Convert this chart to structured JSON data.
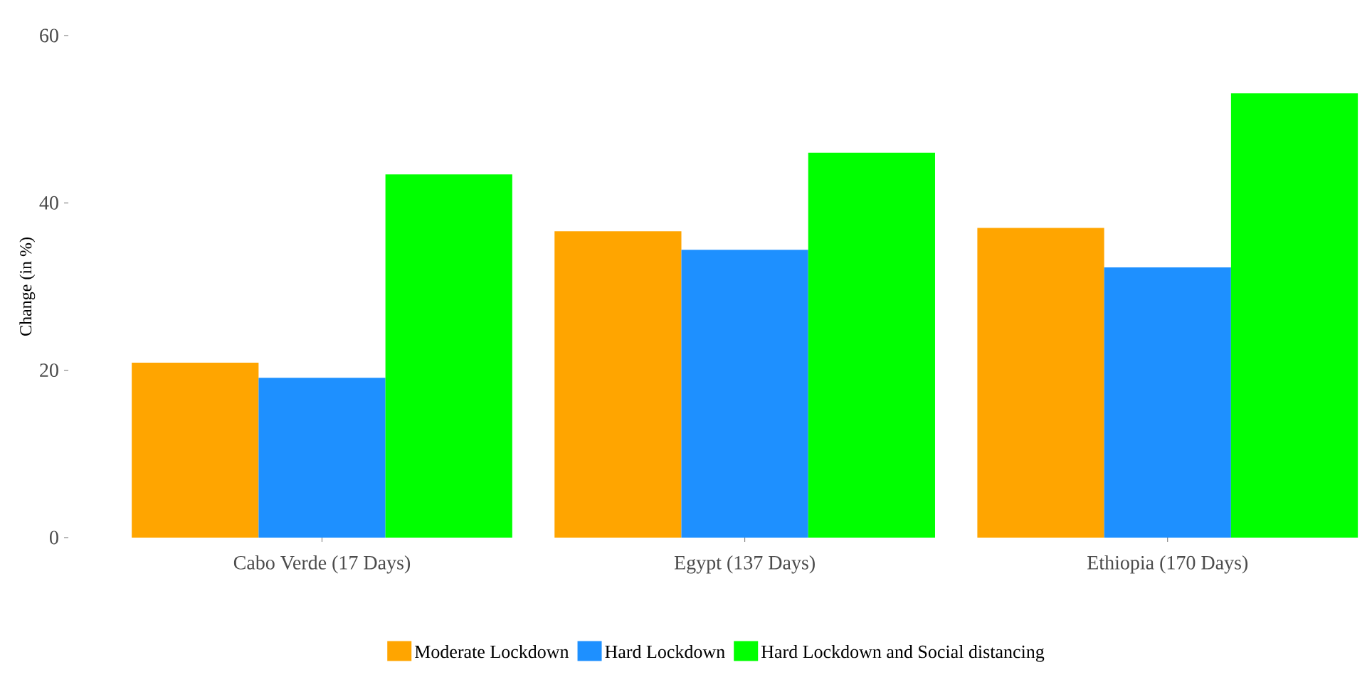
{
  "chart_data": {
    "type": "bar",
    "ylabel": "Change (in %)",
    "categories": [
      "Cabo Verde (17 Days)",
      "Egypt (137 Days)",
      "Ethiopia (170 Days)"
    ],
    "series": [
      {
        "name": "Moderate Lockdown",
        "color": "#ffa500",
        "values": [
          20.9,
          36.6,
          37.0
        ]
      },
      {
        "name": "Hard Lockdown",
        "color": "#1e90ff",
        "values": [
          19.1,
          34.4,
          32.3
        ]
      },
      {
        "name": "Hard Lockdown and Social distancing",
        "color": "#00ff00",
        "values": [
          43.4,
          46.0,
          53.1
        ]
      }
    ],
    "ylim": [
      0,
      60
    ],
    "yticks": [
      0,
      20,
      40,
      60
    ],
    "grid": false,
    "legend": "bottom"
  }
}
